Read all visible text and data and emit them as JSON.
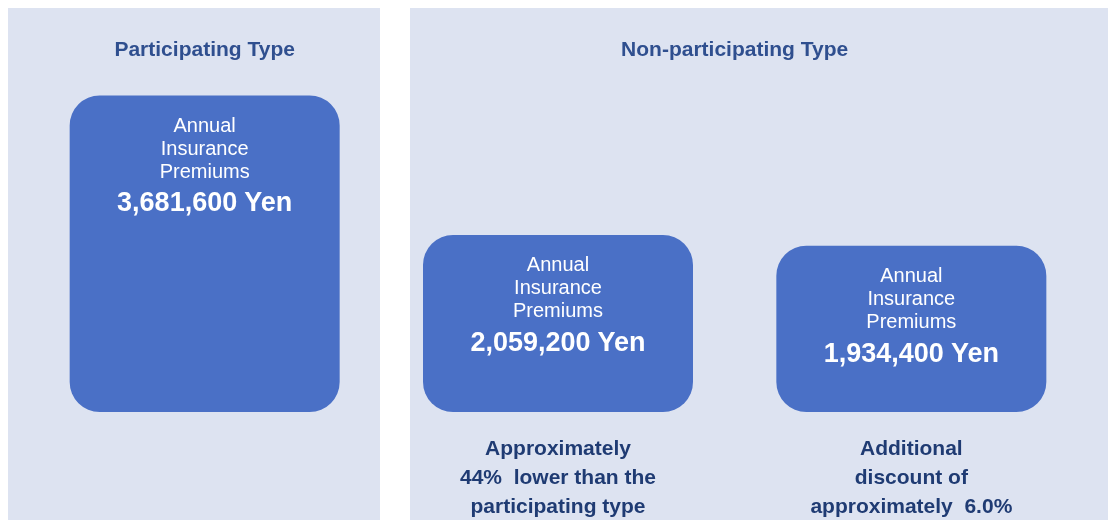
{
  "chart_data": {
    "type": "bar",
    "categories": [
      null,
      null,
      null
    ],
    "series": [
      {
        "name": "Annual Insurance Premiums",
        "color": "#4a70c6",
        "values": [
          3681600,
          2059200,
          1934400
        ],
        "value_labels": [
          "3,681,600 Yen",
          "2,059,200 Yen",
          "1,934,400 Yen"
        ]
      }
    ],
    "annotations": [
      "Participating Type",
      "Non-participating Type",
      "Approximately\n44%  lower than the\nparticipating type",
      "Additional\ndiscount of\napproximately  6.0%"
    ],
    "legend": false
  }
}
